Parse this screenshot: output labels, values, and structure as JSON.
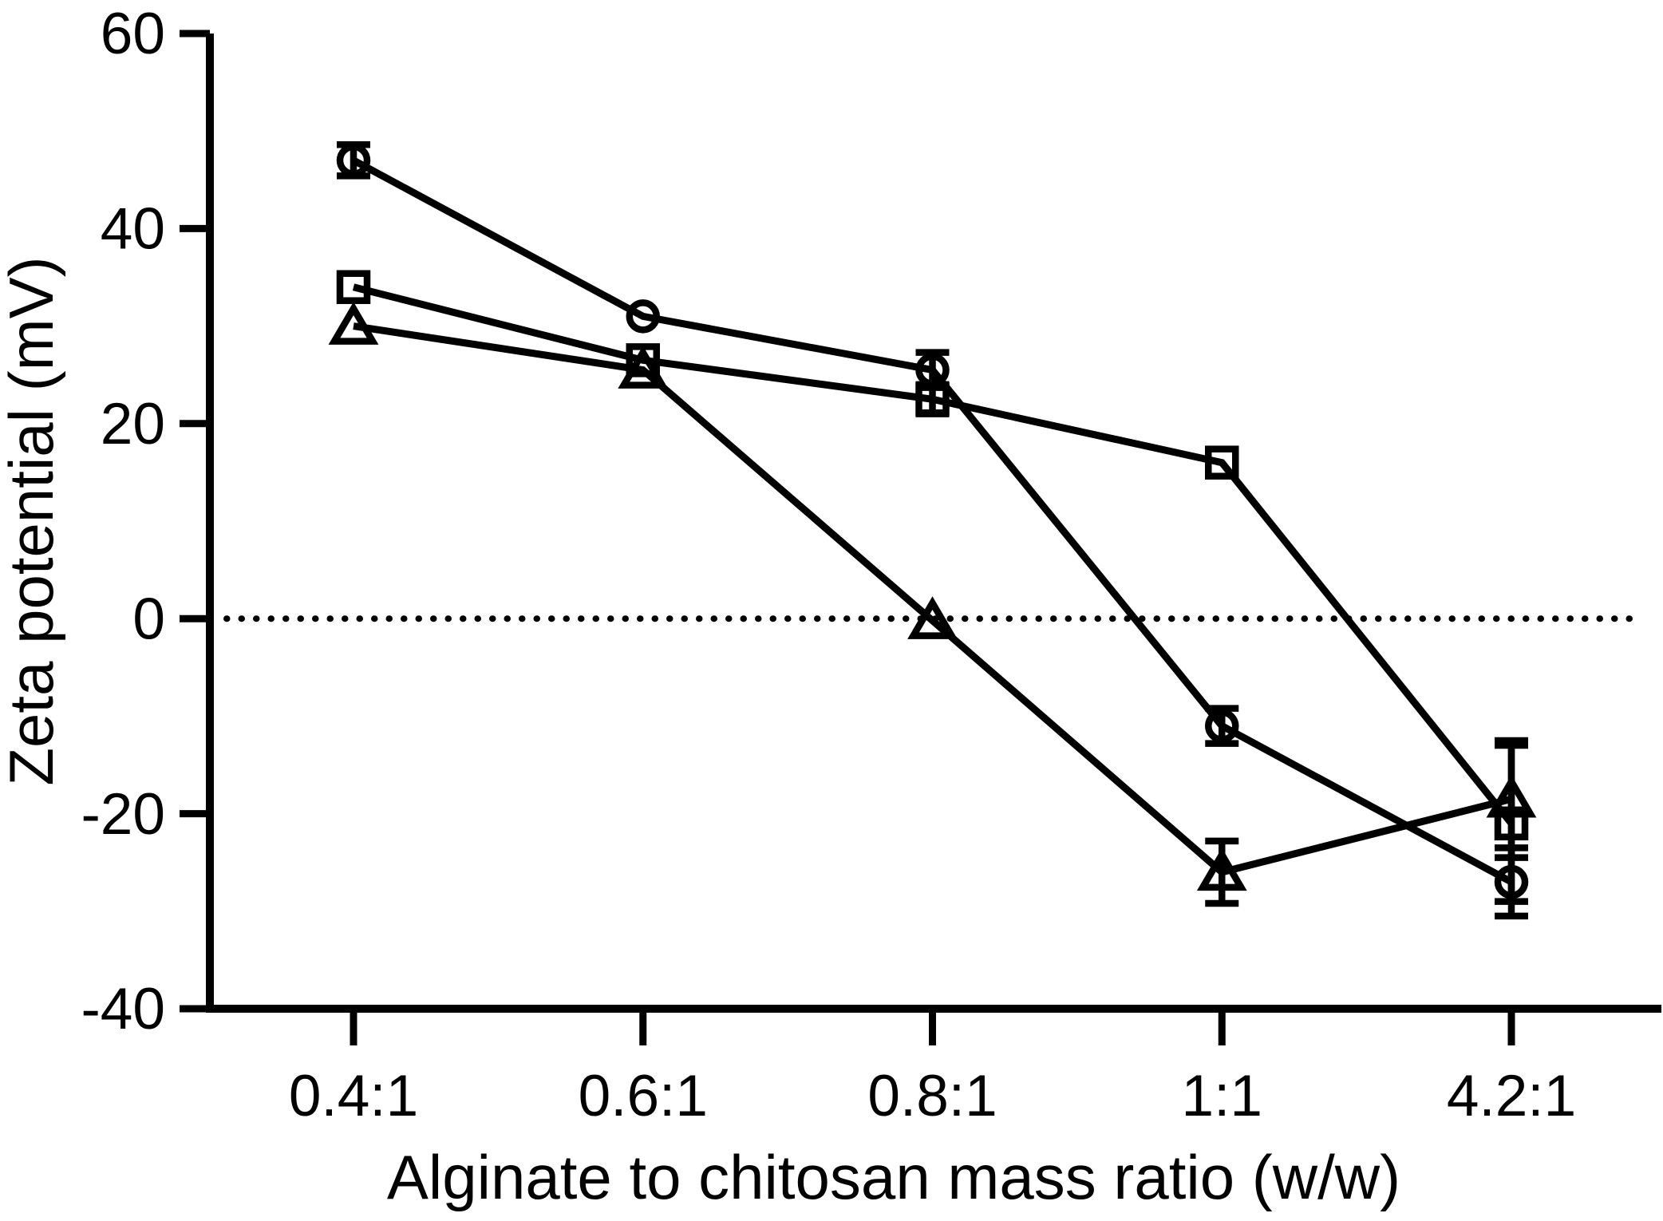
{
  "figure": {
    "background_color": "#ffffff",
    "ink_color": "#000000"
  },
  "chart_data": {
    "type": "line",
    "title": "",
    "xlabel": "Alginate to chitosan mass ratio (w/w)",
    "ylabel": "Zeta potential (mV)",
    "categories": [
      "0.4:1",
      "0.6:1",
      "0.8:1",
      "1:1",
      "4.2:1"
    ],
    "ylim": [
      -40,
      60
    ],
    "y_ticks": [
      60,
      40,
      20,
      0,
      -20,
      -40
    ],
    "grid": "off",
    "legend_position": "none",
    "reference_line": {
      "value": 0,
      "style": "dotted"
    },
    "series": [
      {
        "name": "circle-series",
        "marker": "circle",
        "values": [
          47,
          31,
          25.5,
          -11,
          -27
        ],
        "errors": [
          1.6,
          0,
          1.8,
          1.8,
          3.5
        ]
      },
      {
        "name": "square-series",
        "marker": "square",
        "values": [
          34,
          26.5,
          22.5,
          16,
          -21
        ],
        "errors": [
          0,
          0,
          1.5,
          0,
          8
        ]
      },
      {
        "name": "triangle-series",
        "marker": "triangle",
        "values": [
          30,
          25.5,
          -0.2,
          -26,
          -18.5
        ],
        "errors": [
          0,
          0,
          0,
          3.2,
          6
        ]
      }
    ]
  }
}
